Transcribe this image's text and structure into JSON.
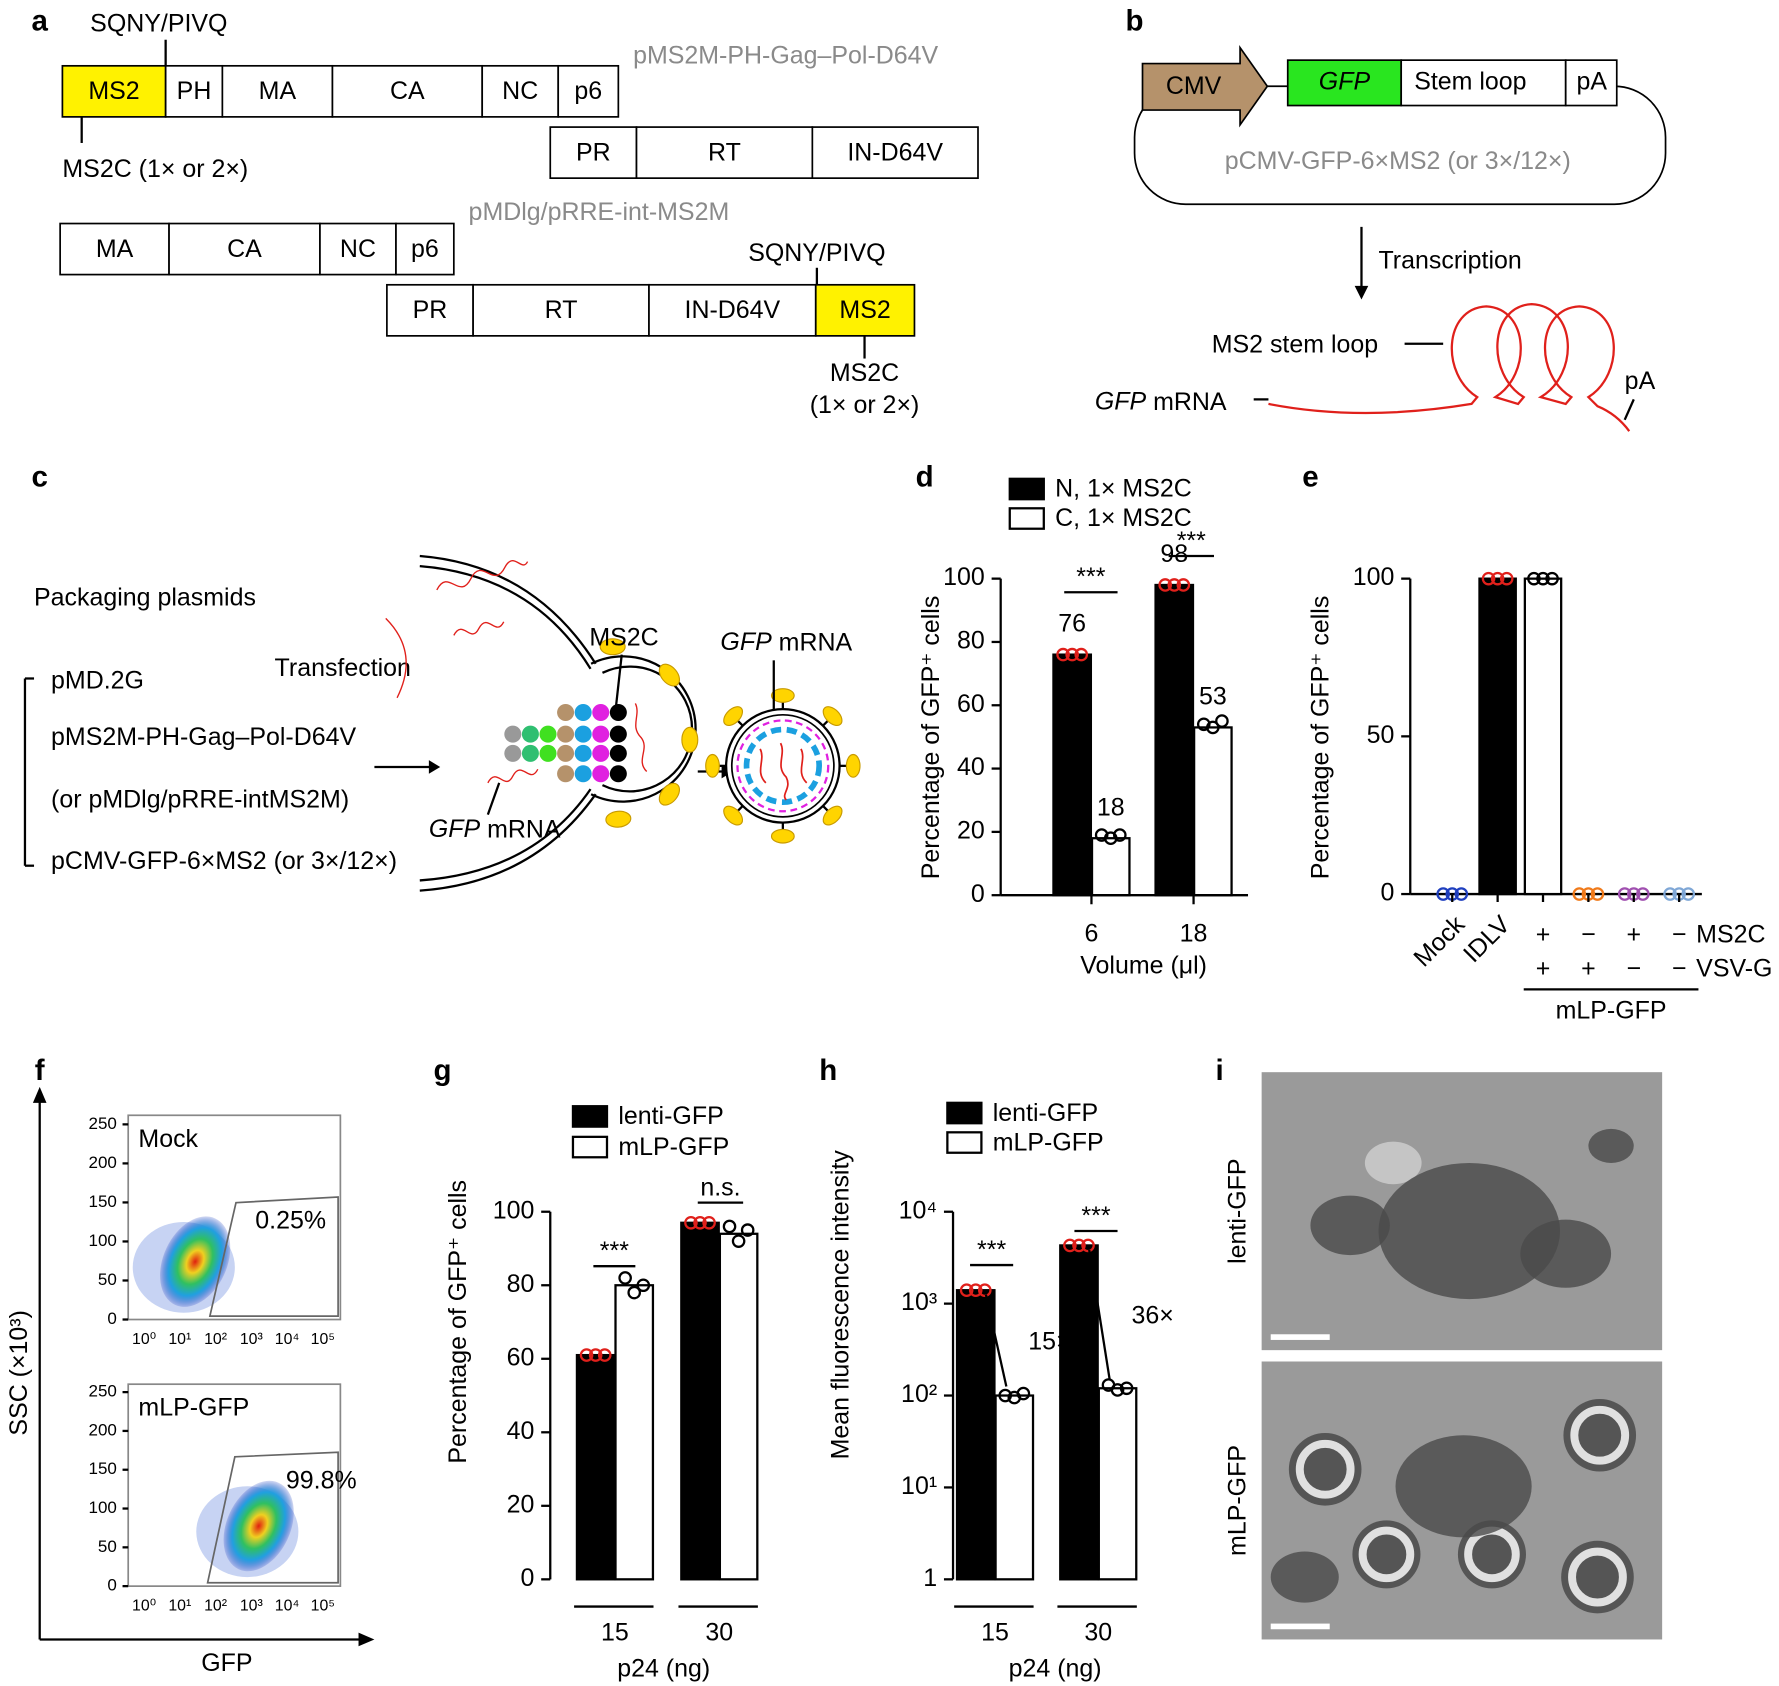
{
  "panel_labels": [
    "a",
    "b",
    "c",
    "d",
    "e",
    "f",
    "g",
    "h",
    "i"
  ],
  "panel_a": {
    "construct1": {
      "name": "pMS2M-PH-Gag–Pol-D64V",
      "gag": [
        "MS2",
        "PH",
        "MA",
        "CA",
        "NC",
        "p6"
      ],
      "pol": [
        "PR",
        "RT",
        "IN-D64V"
      ],
      "site": "SQNY/PIVQ",
      "ms2c": "MS2C (1× or 2×)"
    },
    "construct2": {
      "name": "pMDlg/pRRE-int-MS2M",
      "gag": [
        "MA",
        "CA",
        "NC",
        "p6"
      ],
      "pol": [
        "PR",
        "RT",
        "IN-D64V",
        "MS2"
      ],
      "site": "SQNY/PIVQ",
      "ms2c": [
        "MS2C",
        "(1× or 2×)"
      ]
    }
  },
  "panel_b": {
    "promoter": "CMV",
    "gene": "GFP",
    "stem": "Stem loop",
    "pa": "pA",
    "plasmid": "pCMV-GFP-6×MS2 (or 3×/12×)",
    "arrow": "Transcription",
    "stem_label": "MS2 stem loop",
    "mrna": [
      "GFP",
      " mRNA"
    ],
    "pa2": "pA"
  },
  "panel_c": {
    "heading": "Packaging plasmids",
    "plasmids": [
      "pMD.2G",
      "pMS2M-PH-Gag–Pol-D64V",
      "(or pMDlg/pRRE-intMS2M)",
      "pCMV-GFP-6×MS2 (or 3×/12×)"
    ],
    "step": "Transfection",
    "ms2c": "MS2C",
    "mrna1": [
      "GFP",
      " mRNA"
    ],
    "mrna2": [
      "GFP",
      " mRNA"
    ]
  },
  "panel_f": {
    "ylabel": "SSC (×10³)",
    "xlabel": "GFP",
    "plots": [
      {
        "name": "Mock",
        "gate": "0.25%"
      },
      {
        "name": "mLP-GFP",
        "gate": "99.8%"
      }
    ],
    "yticks": [
      "0",
      "50",
      "100",
      "150",
      "200",
      "250"
    ],
    "xticks": [
      "10⁰",
      "10¹",
      "10²",
      "10³",
      "10⁴",
      "10⁵"
    ]
  },
  "panel_i": {
    "labels": [
      "lenti-GFP",
      "mLP-GFP"
    ]
  },
  "chart_data": [
    {
      "type": "bar",
      "ylabel": "Percentage of GFP⁺ cells",
      "xlabel": "Volume (μl)",
      "categories": [
        "6",
        "18"
      ],
      "series": [
        {
          "name": "N, 1× MS2C",
          "color": "#000000",
          "point_color": "#e0201b",
          "values": [
            76,
            98
          ],
          "points": [
            [
              76,
              76,
              76
            ],
            [
              98,
              98,
              98
            ]
          ]
        },
        {
          "name": "C, 1× MS2C",
          "color": "#ffffff",
          "point_color": "#000000",
          "values": [
            18,
            53
          ],
          "points": [
            [
              19,
              18,
              19
            ],
            [
              54,
              53,
              55
            ]
          ]
        }
      ],
      "ylim": [
        0,
        100
      ],
      "yticks": [
        0,
        20,
        40,
        60,
        80,
        100
      ],
      "significance": [
        "***",
        "***"
      ],
      "show_values": true
    },
    {
      "type": "bar",
      "ylabel": "Percentage of GFP⁺ cells",
      "categories": [
        "Mock",
        "IDLV",
        null,
        null,
        null,
        null
      ],
      "values": [
        0,
        100,
        100,
        0,
        0,
        0
      ],
      "bar_colors": [
        "#ffffff",
        "#000000",
        "#ffffff",
        "#ffffff",
        "#ffffff",
        "#ffffff"
      ],
      "points": [
        [
          0,
          0,
          0
        ],
        [
          100,
          100,
          100
        ],
        [
          100,
          100,
          100
        ],
        [
          0,
          0,
          0
        ],
        [
          0,
          0,
          0
        ],
        [
          0,
          0,
          0
        ]
      ],
      "point_colors": [
        "#1f3fbf",
        "#e0201b",
        "#000000",
        "#f07a1a",
        "#a050b0",
        "#7fa7d6"
      ],
      "ylim": [
        0,
        100
      ],
      "yticks": [
        0,
        50,
        100
      ],
      "conditions": [
        {
          "name": "MS2C",
          "signs": [
            "+",
            "−",
            "+",
            "−"
          ]
        },
        {
          "name": "VSV-G",
          "signs": [
            "+",
            "+",
            "−",
            "−"
          ]
        }
      ],
      "group_label": "mLP-GFP"
    },
    {
      "type": "bar",
      "ylabel": "Percentage of GFP⁺ cells",
      "xlabel": "p24 (ng)",
      "categories": [
        "15",
        "30"
      ],
      "series": [
        {
          "name": "lenti-GFP",
          "color": "#000000",
          "point_color": "#e0201b",
          "values": [
            61,
            97
          ],
          "points": [
            [
              61,
              61,
              61
            ],
            [
              97,
              97,
              97
            ]
          ]
        },
        {
          "name": "mLP-GFP",
          "color": "#ffffff",
          "point_color": "#000000",
          "values": [
            80,
            94
          ],
          "points": [
            [
              82,
              78,
              80
            ],
            [
              96,
              92,
              95
            ]
          ]
        }
      ],
      "ylim": [
        0,
        100
      ],
      "yticks": [
        0,
        20,
        40,
        60,
        80,
        100
      ],
      "significance": [
        "***",
        "n.s."
      ]
    },
    {
      "type": "bar",
      "log_y": true,
      "ylabel": "Mean fluorescence intensity",
      "xlabel": "p24 (ng)",
      "categories": [
        "15",
        "30"
      ],
      "series": [
        {
          "name": "lenti-GFP",
          "color": "#000000",
          "point_color": "#e0201b",
          "values": [
            1400,
            4300
          ],
          "points": [
            [
              1400,
              1400,
              1400
            ],
            [
              4300,
              4300,
              4300
            ]
          ]
        },
        {
          "name": "mLP-GFP",
          "color": "#ffffff",
          "point_color": "#000000",
          "values": [
            100,
            120
          ],
          "points": [
            [
              100,
              95,
              105
            ],
            [
              130,
              115,
              120
            ]
          ]
        }
      ],
      "ylim": [
        1,
        10000
      ],
      "yticks": [
        1,
        {
          "value": 10,
          "label": "10¹"
        },
        {
          "value": 100,
          "label": "10²"
        },
        {
          "value": 1000,
          "label": "10³"
        },
        {
          "value": 10000,
          "label": "10⁴"
        }
      ],
      "significance": [
        "***",
        "***"
      ],
      "fold_labels": [
        "15×",
        "36×"
      ]
    }
  ]
}
